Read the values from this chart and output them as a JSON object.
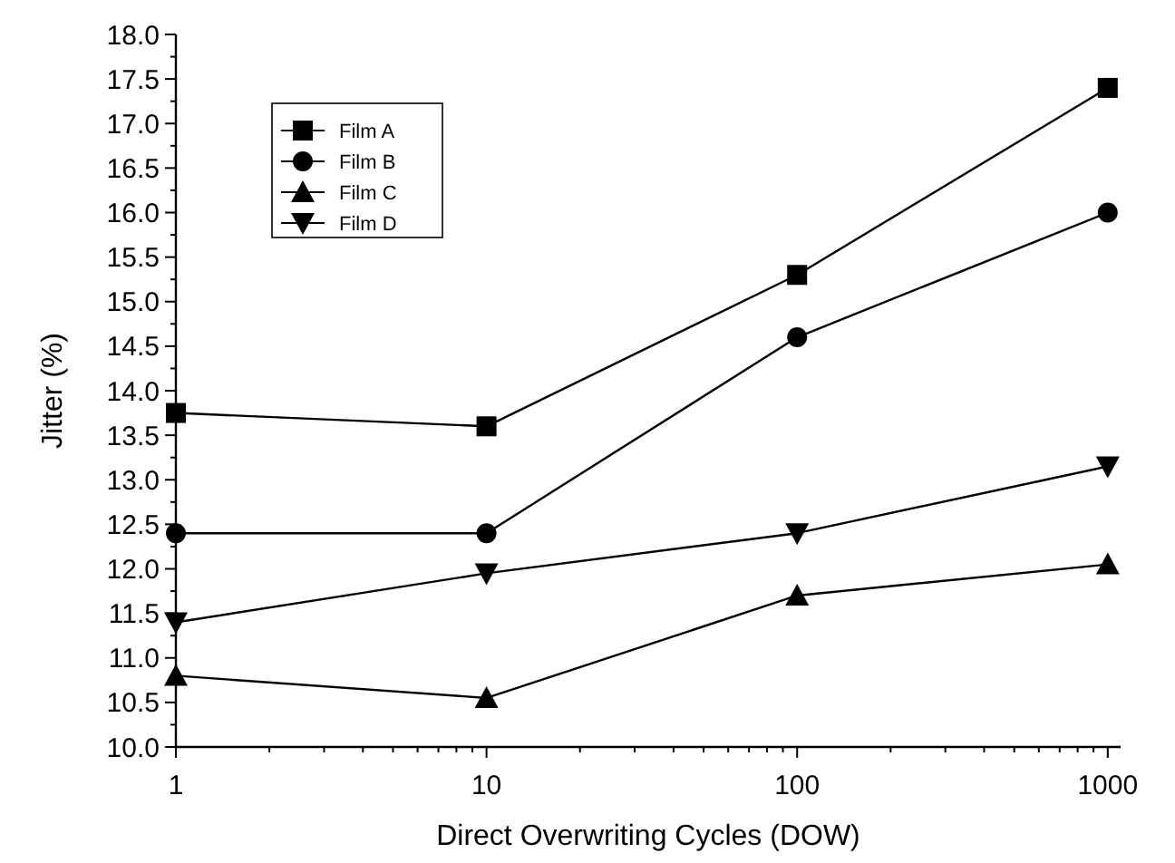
{
  "chart_data": {
    "type": "line",
    "xlabel": "Direct Overwriting Cycles (DOW)",
    "ylabel": "Jitter (%)",
    "x": [
      1,
      10,
      100,
      1000
    ],
    "log": "x",
    "xlim": [
      1,
      1100
    ],
    "ylim": [
      10,
      18
    ],
    "xticks": [
      1,
      {
        "value": 2,
        "label": null
      },
      {
        "value": 3,
        "label": null
      },
      {
        "value": 4,
        "label": null
      },
      {
        "value": 5,
        "label": null
      },
      {
        "value": 6,
        "label": null
      },
      {
        "value": 7,
        "label": null
      },
      {
        "value": 8,
        "label": null
      },
      {
        "value": 9,
        "label": null
      },
      10,
      {
        "value": 20,
        "label": null
      },
      {
        "value": 30,
        "label": null
      },
      {
        "value": 40,
        "label": null
      },
      {
        "value": 50,
        "label": null
      },
      {
        "value": 60,
        "label": null
      },
      {
        "value": 70,
        "label": null
      },
      {
        "value": 80,
        "label": null
      },
      {
        "value": 90,
        "label": null
      },
      100,
      {
        "value": 200,
        "label": null
      },
      {
        "value": 300,
        "label": null
      },
      {
        "value": 400,
        "label": null
      },
      {
        "value": 500,
        "label": null
      },
      {
        "value": 600,
        "label": null
      },
      {
        "value": 700,
        "label": null
      },
      {
        "value": 800,
        "label": null
      },
      {
        "value": 900,
        "label": null
      },
      1000
    ],
    "yticks": [
      {
        "value": 10,
        "label": "10.0"
      },
      {
        "value": 10.25,
        "label": null
      },
      {
        "value": 10.5,
        "label": "10.5"
      },
      {
        "value": 10.75,
        "label": null
      },
      {
        "value": 11,
        "label": "11.0"
      },
      {
        "value": 11.25,
        "label": null
      },
      {
        "value": 11.5,
        "label": "11.5"
      },
      {
        "value": 11.75,
        "label": null
      },
      {
        "value": 12,
        "label": "12.0"
      },
      {
        "value": 12.25,
        "label": null
      },
      {
        "value": 12.5,
        "label": "12.5"
      },
      {
        "value": 12.75,
        "label": null
      },
      {
        "value": 13,
        "label": "13.0"
      },
      {
        "value": 13.25,
        "label": null
      },
      {
        "value": 13.5,
        "label": "13.5"
      },
      {
        "value": 13.75,
        "label": null
      },
      {
        "value": 14,
        "label": "14.0"
      },
      {
        "value": 14.25,
        "label": null
      },
      {
        "value": 14.5,
        "label": "14.5"
      },
      {
        "value": 14.75,
        "label": null
      },
      {
        "value": 15,
        "label": "15.0"
      },
      {
        "value": 15.25,
        "label": null
      },
      {
        "value": 15.5,
        "label": "15.5"
      },
      {
        "value": 15.75,
        "label": null
      },
      {
        "value": 16,
        "label": "16.0"
      },
      {
        "value": 16.25,
        "label": null
      },
      {
        "value": 16.5,
        "label": "16.5"
      },
      {
        "value": 16.75,
        "label": null
      },
      {
        "value": 17,
        "label": "17.0"
      },
      {
        "value": 17.25,
        "label": null
      },
      {
        "value": 17.5,
        "label": "17.5"
      },
      {
        "value": 17.75,
        "label": null
      },
      {
        "value": 18,
        "label": "18.0"
      }
    ],
    "grid": false,
    "legend": "top left",
    "line_style": "solid",
    "series": [
      {
        "name": "Film A",
        "color": "#000000",
        "marker": "square",
        "values": [
          13.75,
          13.6,
          15.3,
          17.4
        ]
      },
      {
        "name": "Film B",
        "color": "#000000",
        "marker": "circle",
        "values": [
          12.4,
          12.4,
          14.6,
          16.0
        ]
      },
      {
        "name": "Film C",
        "color": "#000000",
        "marker": "triangle",
        "values": [
          10.8,
          10.55,
          11.7,
          12.05
        ]
      },
      {
        "name": "Film D",
        "color": "#000000",
        "marker": "triangle-down",
        "values": [
          11.4,
          11.95,
          12.4,
          13.15
        ]
      }
    ]
  }
}
